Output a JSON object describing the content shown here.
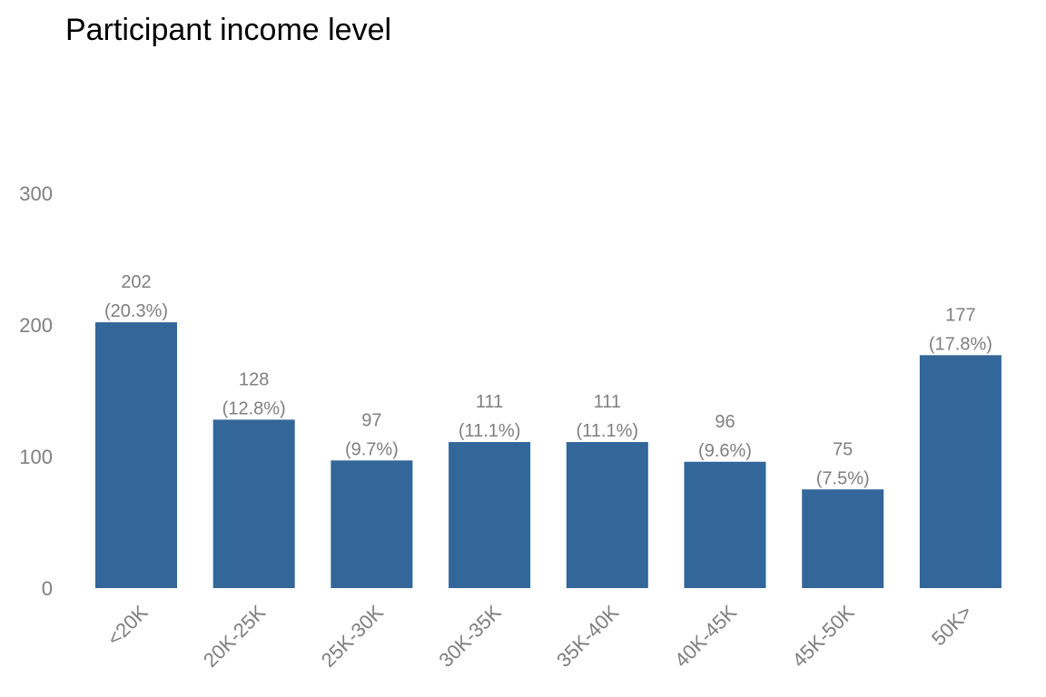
{
  "chart_data": {
    "type": "bar",
    "title": "Participant income level",
    "xlabel": "",
    "ylabel": "",
    "categories": [
      "<20K",
      "20K-25K",
      "25K-30K",
      "30K-35K",
      "35K-40K",
      "40K-45K",
      "45K-50K",
      "50K>"
    ],
    "values": [
      202,
      128,
      97,
      111,
      111,
      96,
      75,
      177
    ],
    "percent_labels": [
      "(20.3%)",
      "(12.8%)",
      "(9.7%)",
      "(11.1%)",
      "(11.1%)",
      "(9.6%)",
      "(7.5%)",
      "(17.8%)"
    ],
    "ylim": [
      0,
      300
    ],
    "yticks": [
      0,
      100,
      200,
      300
    ],
    "grid": false,
    "legend": "none",
    "bar_color": "#336699"
  }
}
